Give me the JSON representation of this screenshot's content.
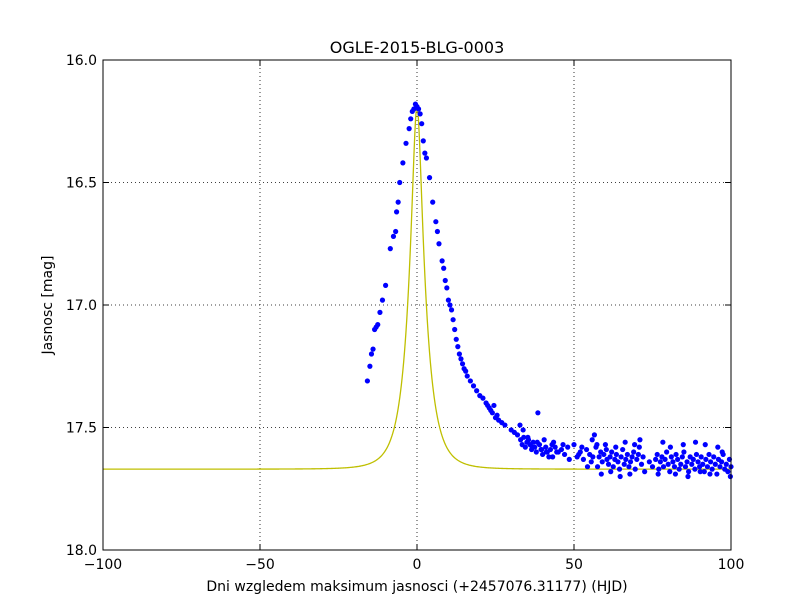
{
  "chart_data": {
    "type": "scatter",
    "title": "OGLE-2015-BLG-0003",
    "xlabel": "Dni wzgledem maksimum jasnosci (+2457076.31177) (HJD)",
    "ylabel": "Jasnosc [mag]",
    "xlim": [
      -100,
      100
    ],
    "ylim": [
      16.0,
      18.0
    ],
    "y_inverted": true,
    "grid": true,
    "x_ticks": [
      -100,
      -50,
      0,
      50,
      100
    ],
    "x_tick_labels": [
      "−100",
      "−50",
      "0",
      "50",
      "100"
    ],
    "y_ticks": [
      16.0,
      16.5,
      17.0,
      17.5,
      18.0
    ],
    "y_tick_labels": [
      "16.0",
      "16.5",
      "17.0",
      "17.5",
      "18.0"
    ],
    "model": {
      "color": "#bfbf00",
      "baseline_mag": 17.67,
      "peak_mag": 16.19,
      "t0": 0.0,
      "tE": 5.4
    },
    "observations": {
      "color": "#0000ff",
      "x": [
        -15.8,
        -15.0,
        -14.5,
        -14.0,
        -13.5,
        -13.0,
        -12.5,
        -11.8,
        -11.0,
        -10.0,
        -8.5,
        -7.5,
        -6.8,
        -6.5,
        -6.0,
        -5.5,
        -4.5,
        -3.5,
        -2.5,
        -2.0,
        -1.5,
        -1.0,
        -0.5,
        0.0,
        0.5,
        1.0,
        1.5,
        2.0,
        2.5,
        3.0,
        4.0,
        5.0,
        6.0,
        6.5,
        7.0,
        8.0,
        8.5,
        9.0,
        9.5,
        10.0,
        10.5,
        11.0,
        11.5,
        12.0,
        12.5,
        13.0,
        13.5,
        14.0,
        14.5,
        15.0,
        15.5,
        16.0,
        17.0,
        18.0,
        19.0,
        20.0,
        21.0,
        22.0,
        22.5,
        23.0,
        23.5,
        24.0,
        24.5,
        25.0,
        25.5,
        26.0,
        27.0,
        28.0,
        30.0,
        31.0,
        32.0,
        33.0,
        33.5,
        34.0,
        34.5,
        35.0,
        35.5,
        36.0,
        36.5,
        37.0,
        37.5,
        38.0,
        38.5,
        39.0,
        39.5,
        40.0,
        40.5,
        41.0,
        41.5,
        42.0,
        42.5,
        43.0,
        43.5,
        44.0,
        45.0,
        46.0,
        47.0,
        48.0,
        50.0,
        51.0,
        52.0,
        53.0,
        54.0,
        55.0,
        55.5,
        56.0,
        56.5,
        57.0,
        57.5,
        58.0,
        58.5,
        59.0,
        59.5,
        60.0,
        60.5,
        61.0,
        61.5,
        62.0,
        62.5,
        63.0,
        63.5,
        64.0,
        64.5,
        65.0,
        65.5,
        66.0,
        66.5,
        67.0,
        67.5,
        68.0,
        68.5,
        69.0,
        69.5,
        70.0,
        70.5,
        71.0,
        71.5,
        72.0,
        74.0,
        75.0,
        76.0,
        76.5,
        77.0,
        77.5,
        78.0,
        78.5,
        79.0,
        79.5,
        80.0,
        80.5,
        81.0,
        81.5,
        82.0,
        82.5,
        83.0,
        83.5,
        84.0,
        84.5,
        85.0,
        85.5,
        86.0,
        86.5,
        87.0,
        87.5,
        88.0,
        88.5,
        89.0,
        89.5,
        90.0,
        90.5,
        91.0,
        91.5,
        92.0,
        92.5,
        93.0,
        93.5,
        94.0,
        94.5,
        95.0,
        95.5,
        96.0,
        96.5,
        97.0,
        97.5,
        98.0,
        98.5,
        99.0,
        99.5,
        100.0,
        99.8,
        97.2,
        95.8,
        93.3,
        91.8,
        90.2,
        88.7,
        86.3,
        84.8,
        82.3,
        80.7,
        78.3,
        76.8,
        72.5,
        70.8,
        69.3,
        67.8,
        66.3,
        64.7,
        63.3,
        61.7,
        60.3,
        58.7,
        57.3,
        55.8,
        54.3,
        52.5,
        51.5,
        48.5,
        46.5,
        44.5,
        43.2,
        41.2,
        39.7,
        38.3,
        36.7,
        35.3,
        33.8,
        32.8
      ],
      "y": [
        17.31,
        17.25,
        17.2,
        17.18,
        17.1,
        17.09,
        17.08,
        17.03,
        16.98,
        16.92,
        16.77,
        16.72,
        16.7,
        16.62,
        16.58,
        16.5,
        16.42,
        16.34,
        16.28,
        16.24,
        16.21,
        16.2,
        16.18,
        16.19,
        16.2,
        16.22,
        16.26,
        16.33,
        16.38,
        16.4,
        16.48,
        16.58,
        16.66,
        16.7,
        16.75,
        16.82,
        16.85,
        16.9,
        16.93,
        16.98,
        17.0,
        17.02,
        17.06,
        17.1,
        17.14,
        17.17,
        17.2,
        17.22,
        17.24,
        17.26,
        17.27,
        17.29,
        17.31,
        17.33,
        17.35,
        17.37,
        17.38,
        17.4,
        17.41,
        17.42,
        17.43,
        17.44,
        17.41,
        17.46,
        17.45,
        17.47,
        17.48,
        17.49,
        17.51,
        17.52,
        17.53,
        17.55,
        17.57,
        17.54,
        17.58,
        17.56,
        17.55,
        17.57,
        17.59,
        17.56,
        17.58,
        17.6,
        17.44,
        17.57,
        17.59,
        17.61,
        17.55,
        17.58,
        17.6,
        17.62,
        17.59,
        17.57,
        17.56,
        17.58,
        17.6,
        17.59,
        17.61,
        17.58,
        17.57,
        17.62,
        17.6,
        17.63,
        17.59,
        17.61,
        17.64,
        17.62,
        17.53,
        17.58,
        17.66,
        17.62,
        17.6,
        17.64,
        17.61,
        17.57,
        17.63,
        17.65,
        17.62,
        17.6,
        17.66,
        17.63,
        17.61,
        17.64,
        17.67,
        17.62,
        17.59,
        17.65,
        17.63,
        17.61,
        17.66,
        17.64,
        17.62,
        17.6,
        17.67,
        17.63,
        17.61,
        17.55,
        17.65,
        17.62,
        17.64,
        17.66,
        17.63,
        17.61,
        17.67,
        17.64,
        17.62,
        17.66,
        17.63,
        17.6,
        17.65,
        17.68,
        17.62,
        17.64,
        17.66,
        17.61,
        17.63,
        17.67,
        17.65,
        17.62,
        17.6,
        17.66,
        17.64,
        17.68,
        17.62,
        17.65,
        17.63,
        17.67,
        17.61,
        17.64,
        17.66,
        17.62,
        17.65,
        17.68,
        17.63,
        17.66,
        17.61,
        17.64,
        17.67,
        17.62,
        17.65,
        17.69,
        17.63,
        17.66,
        17.64,
        17.61,
        17.67,
        17.65,
        17.68,
        17.63,
        17.66,
        17.7,
        17.6,
        17.58,
        17.69,
        17.57,
        17.68,
        17.56,
        17.7,
        17.57,
        17.69,
        17.58,
        17.56,
        17.69,
        17.68,
        17.58,
        17.57,
        17.69,
        17.56,
        17.7,
        17.58,
        17.68,
        17.59,
        17.69,
        17.57,
        17.55,
        17.66,
        17.58,
        17.61,
        17.63,
        17.57,
        17.6,
        17.62,
        17.6,
        17.59,
        17.56,
        17.58,
        17.54,
        17.51,
        17.49
      ]
    }
  }
}
